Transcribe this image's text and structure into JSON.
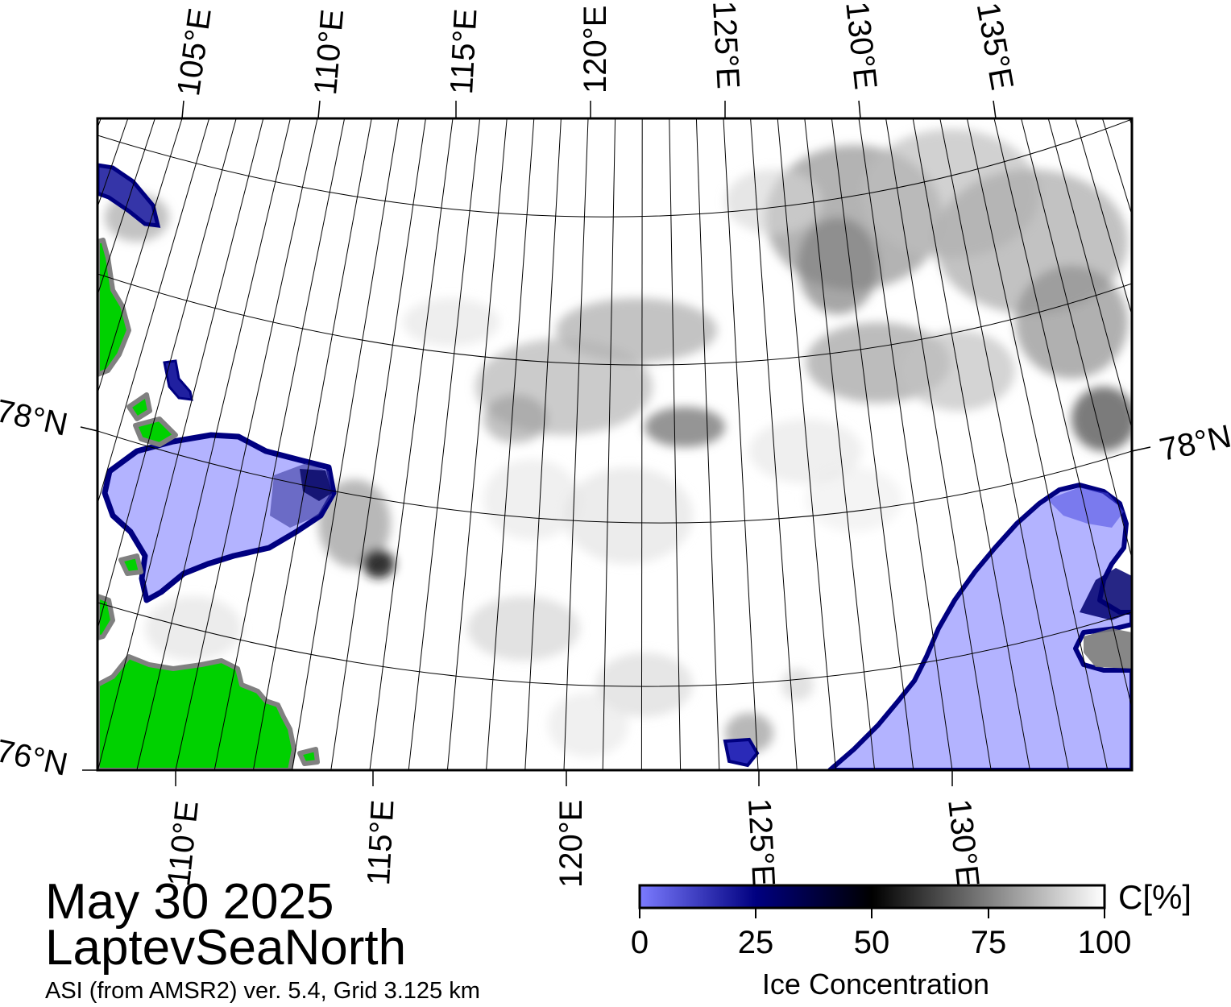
{
  "map": {
    "region": "LaptevSeaNorth",
    "colors": {
      "land": "#00d100",
      "land_edge": "#808080",
      "fast_ice": "#b3b3ff",
      "ice_edge": "#000080",
      "open_water": "#ffffff",
      "frame": "#000000"
    },
    "top_longitude_labels": [
      "105°E",
      "110°E",
      "115°E",
      "120°E",
      "125°E",
      "130°E",
      "135°E"
    ],
    "bottom_longitude_labels": [
      "110°E",
      "115°E",
      "120°E",
      "125°E",
      "130°E"
    ],
    "latitude_labels": {
      "left_upper": "78°N",
      "left_lower": "76°N",
      "right": "78°N"
    }
  },
  "info": {
    "date": "May 30 2025",
    "region_name": "LaptevSeaNorth",
    "product": "ASI (from AMSR2) ver. 5.4,  Grid 3.125 km"
  },
  "colorbar": {
    "unit": "C[%]",
    "title": "Ice Concentration",
    "ticks": [
      "0",
      "25",
      "50",
      "75",
      "100"
    ],
    "colors": [
      "#7b7bff",
      "#000080",
      "#000000",
      "#808080",
      "#ffffff"
    ]
  }
}
